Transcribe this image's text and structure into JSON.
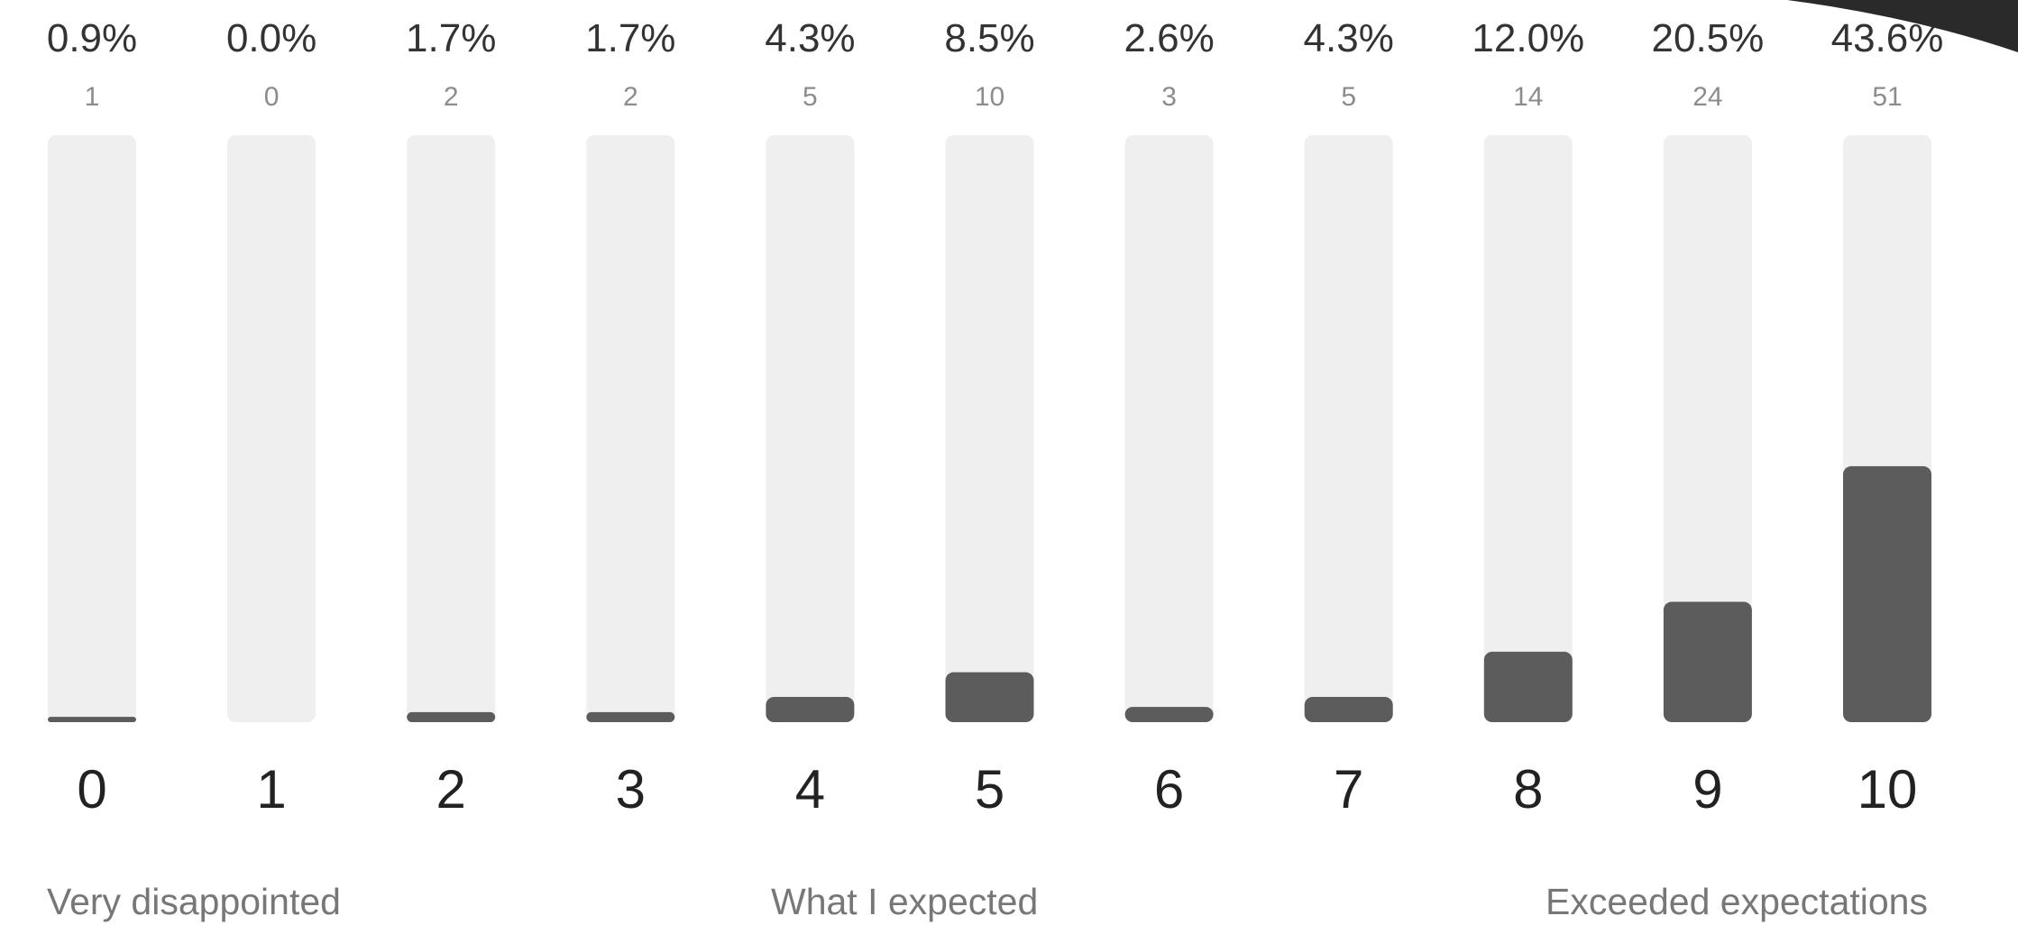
{
  "chart_data": {
    "type": "bar",
    "categories": [
      "0",
      "1",
      "2",
      "3",
      "4",
      "5",
      "6",
      "7",
      "8",
      "9",
      "10"
    ],
    "series": [
      {
        "values": [
          1,
          0,
          2,
          2,
          5,
          10,
          3,
          5,
          14,
          24,
          51
        ]
      }
    ],
    "percent_labels": [
      "0.9%",
      "0.0%",
      "1.7%",
      "1.7%",
      "4.3%",
      "8.5%",
      "2.6%",
      "4.3%",
      "12.0%",
      "20.5%",
      "43.6%"
    ],
    "count_labels": [
      "1",
      "0",
      "2",
      "2",
      "5",
      "10",
      "3",
      "5",
      "14",
      "24",
      "51"
    ],
    "percent_values": [
      0.9,
      0.0,
      1.7,
      1.7,
      4.3,
      8.5,
      2.6,
      4.3,
      12.0,
      20.5,
      43.6
    ],
    "ylim": [
      0,
      100
    ],
    "grid": false,
    "scale_anchors": {
      "low": "Very disappointed",
      "mid": "What I expected",
      "high": "Exceeded expectations"
    }
  },
  "colors": {
    "bar_fill": "#5c5c5c",
    "track": "#efefef",
    "percent_text": "#333333",
    "count_text": "#8c8c8c"
  }
}
